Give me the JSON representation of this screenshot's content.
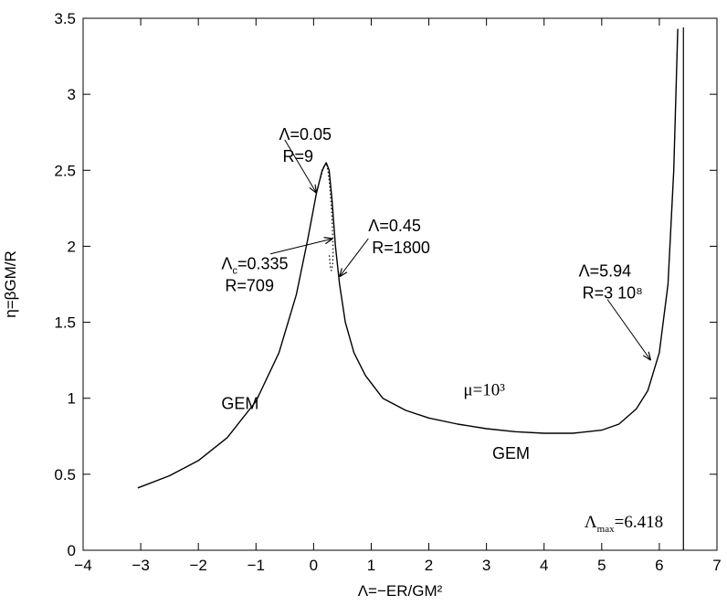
{
  "chart_data": {
    "type": "line",
    "xlabel": "Λ=−ER/GM²",
    "ylabel": "η=βGM/R",
    "xlim": [
      -4,
      7
    ],
    "ylim": [
      0,
      3.5
    ],
    "xticks": [
      "−4",
      "−3",
      "−2",
      "−1",
      "0",
      "1",
      "2",
      "3",
      "4",
      "5",
      "6",
      "7"
    ],
    "yticks": [
      "0",
      "0.5",
      "1",
      "1.5",
      "2",
      "2.5",
      "3",
      "3.5"
    ],
    "grid": false,
    "legend": "none",
    "series": [
      {
        "style": "solid",
        "x": [
          -3.05,
          -2.5,
          -2.0,
          -1.5,
          -1.0,
          -0.6,
          -0.3,
          -0.1,
          0.05,
          0.15,
          0.22,
          0.27,
          0.32,
          0.38,
          0.45,
          0.55,
          0.7,
          0.9,
          1.2,
          1.6,
          2.0,
          2.5,
          3.0,
          3.5,
          4.0,
          4.5,
          5.0,
          5.3,
          5.6,
          5.8,
          6.0,
          6.15,
          6.25,
          6.32
        ],
        "y": [
          0.41,
          0.49,
          0.59,
          0.74,
          0.98,
          1.3,
          1.68,
          2.05,
          2.35,
          2.5,
          2.55,
          2.5,
          2.3,
          2.0,
          1.75,
          1.5,
          1.3,
          1.15,
          1.0,
          0.92,
          0.87,
          0.83,
          0.8,
          0.78,
          0.77,
          0.77,
          0.79,
          0.83,
          0.93,
          1.05,
          1.3,
          1.75,
          2.5,
          3.43
        ]
      },
      {
        "style": "dotted",
        "x": [
          0.12,
          0.18,
          0.22,
          0.25,
          0.28,
          0.31,
          0.335,
          0.34,
          0.33,
          0.31,
          0.29,
          0.27
        ],
        "y": [
          2.45,
          2.53,
          2.55,
          2.5,
          2.4,
          2.25,
          2.05,
          1.95,
          1.88,
          1.84,
          1.86,
          1.95
        ]
      }
    ],
    "vline": {
      "x": 6.418
    },
    "annotations": [
      {
        "lines": [
          "Λ=0.05",
          "R=9"
        ],
        "text_at": [
          -0.6,
          2.7
        ],
        "arrow_from": [
          -0.5,
          2.7
        ],
        "arrow_to": [
          0.05,
          2.35
        ]
      },
      {
        "lines": [
          "Λc=0.335",
          "R=709"
        ],
        "text_at": [
          -1.6,
          1.85
        ],
        "arrow_from": [
          -0.75,
          1.95
        ],
        "arrow_to": [
          0.33,
          2.05
        ]
      },
      {
        "lines": [
          "Λ=0.45",
          "R=1800"
        ],
        "text_at": [
          0.95,
          2.1
        ],
        "arrow_from": [
          0.95,
          2.05
        ],
        "arrow_to": [
          0.45,
          1.8
        ]
      },
      {
        "lines": [
          "Λ=5.94",
          "R=3 10⁸"
        ],
        "text_at": [
          4.6,
          1.8
        ],
        "arrow_from": [
          5.1,
          1.65
        ],
        "arrow_to": [
          5.85,
          1.25
        ]
      }
    ],
    "labels": [
      {
        "text": "GEM",
        "at": [
          -1.6,
          0.93
        ]
      },
      {
        "text": "μ=10³",
        "at": [
          2.6,
          1.02
        ]
      },
      {
        "text": "GEM",
        "at": [
          3.1,
          0.6
        ]
      },
      {
        "text": "Λmax=6.418",
        "at": [
          4.7,
          0.15
        ]
      }
    ]
  }
}
